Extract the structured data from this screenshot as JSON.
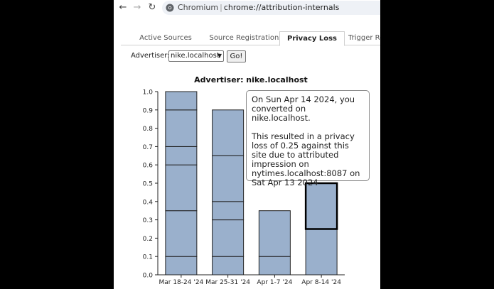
{
  "browser": {
    "site_chip": "Chromium",
    "url_scheme": "chrome://",
    "url_path": "attribution-internals"
  },
  "tabs": [
    {
      "label": "Active Sources",
      "active": false
    },
    {
      "label": "Source Registrations",
      "active": false
    },
    {
      "label": "Privacy Loss",
      "active": true
    },
    {
      "label": "Trigger Registrations",
      "active": false
    }
  ],
  "advertiser_form": {
    "label": "Advertiser:",
    "selected": "nike.localhost",
    "go_label": "Go!"
  },
  "tooltip": {
    "line1": "On Sun Apr 14 2024, you converted on nike.localhost.",
    "line2": "This resulted in a privacy loss of 0.25 against this site due to attributed impression on nytimes.localhost:8087 on Sat Apr 13 2024"
  },
  "colors": {
    "bar_fill": "#9ab0cc",
    "bar_stroke": "#222222",
    "highlight_stroke": "#000000"
  },
  "chart_data": {
    "type": "bar",
    "stacked": true,
    "title": "Advertiser: nike.localhost",
    "xlabel": "",
    "ylabel": "",
    "ylim": [
      0,
      1.0
    ],
    "yticks": [
      "0.0",
      "0.1",
      "0.2",
      "0.3",
      "0.4",
      "0.5",
      "0.6",
      "0.7",
      "0.8",
      "0.9",
      "1.0"
    ],
    "categories": [
      "Mar 18-24 '24",
      "Mar 25-31 '24",
      "Apr 1-7 '24",
      "Apr 8-14 '24"
    ],
    "segments": [
      [
        0.1,
        0.25,
        0.25,
        0.1,
        0.2,
        0.1
      ],
      [
        0.1,
        0.2,
        0.1,
        0.25,
        0.25
      ],
      [
        0.1,
        0.25
      ],
      [
        0.25,
        0.25
      ]
    ],
    "totals": [
      1.0,
      0.9,
      0.35,
      0.5
    ],
    "highlight": {
      "category_index": 3,
      "segment_index": 1
    }
  }
}
